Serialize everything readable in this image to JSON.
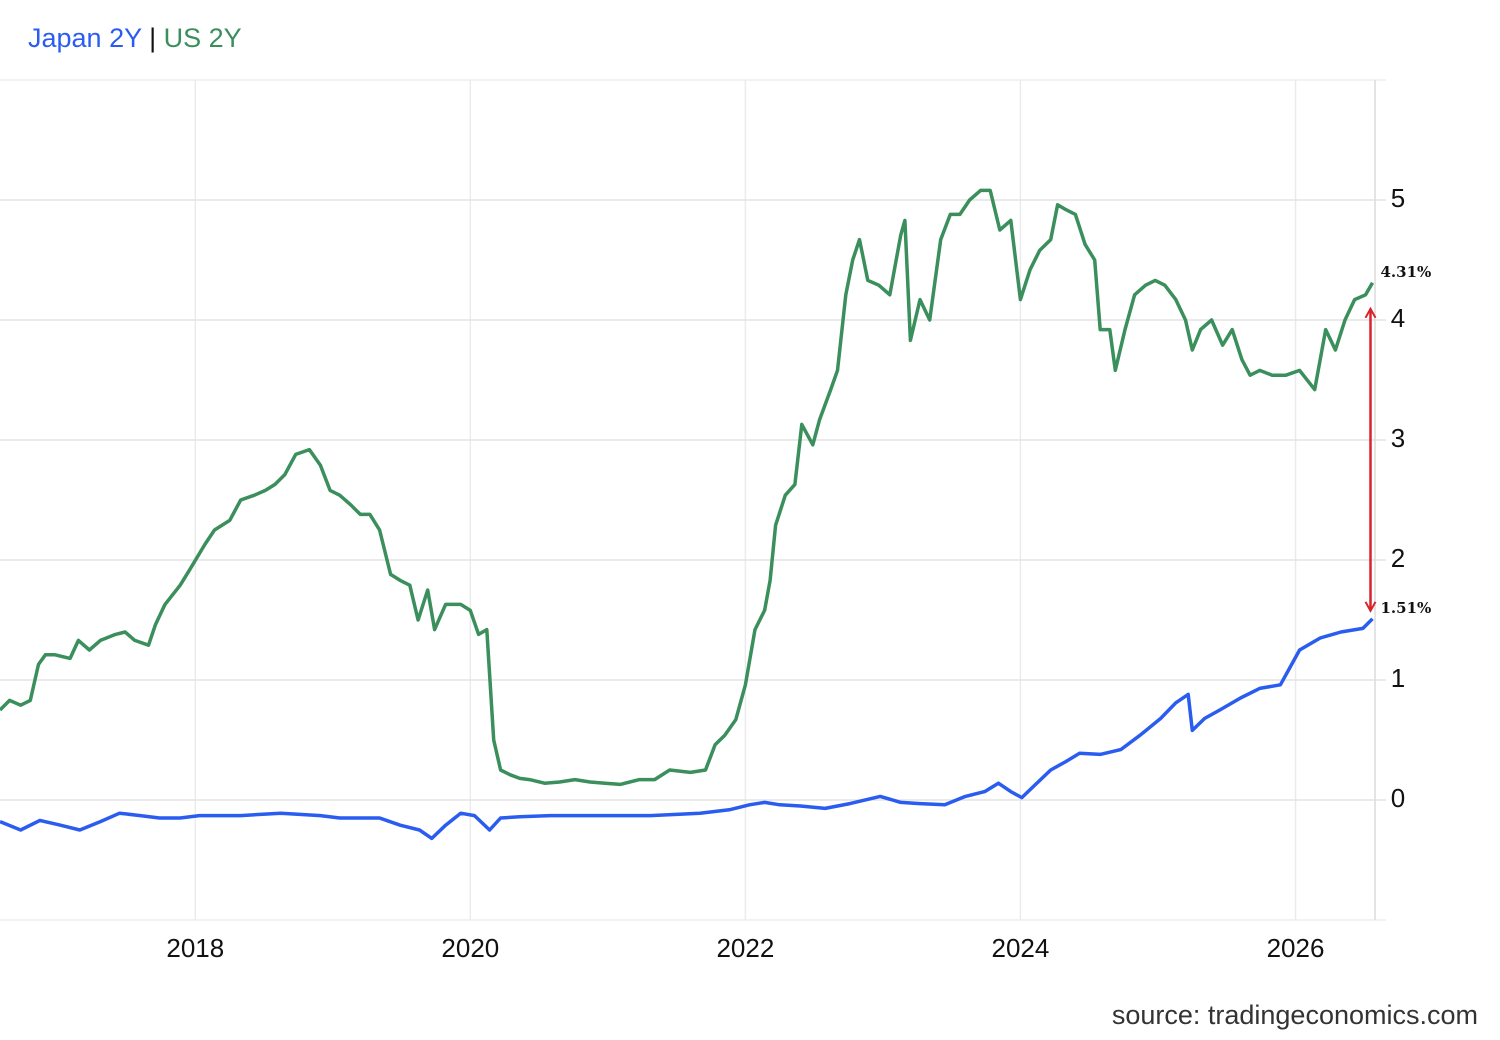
{
  "chart_data": {
    "type": "line",
    "legend_separator": "|",
    "source": "source: tradingeconomics.com",
    "xlim": [
      2016.58,
      2026.6
    ],
    "xticks": [
      2018,
      2020,
      2022,
      2024,
      2026
    ],
    "ylim": [
      -1,
      6
    ],
    "yticks": [
      0,
      1,
      2,
      3,
      4,
      5
    ],
    "grid": true,
    "y_axis_side": "right",
    "series": [
      {
        "name": "Japan 2Y",
        "color": "#2b5cf0",
        "end_label": "1.51%",
        "end_label_color": "#4b4bd0",
        "x": [
          2016.58,
          2016.73,
          2016.87,
          2017.02,
          2017.16,
          2017.31,
          2017.45,
          2017.6,
          2017.74,
          2017.89,
          2018.03,
          2018.33,
          2018.62,
          2018.76,
          2018.91,
          2019.05,
          2019.2,
          2019.34,
          2019.49,
          2019.63,
          2019.72,
          2019.82,
          2019.93,
          2020.03,
          2020.14,
          2020.22,
          2020.36,
          2020.58,
          2020.94,
          2021.31,
          2021.67,
          2021.89,
          2022.03,
          2022.14,
          2022.25,
          2022.4,
          2022.58,
          2022.76,
          2022.98,
          2023.13,
          2023.27,
          2023.45,
          2023.6,
          2023.74,
          2023.84,
          2023.93,
          2024.01,
          2024.11,
          2024.22,
          2024.33,
          2024.43,
          2024.58,
          2024.73,
          2024.87,
          2025.02,
          2025.13,
          2025.22,
          2025.25,
          2025.34,
          2025.45,
          2025.6,
          2025.74,
          2025.89,
          2026.03,
          2026.18,
          2026.33,
          2026.49,
          2026.56
        ],
        "values": [
          -0.18,
          -0.25,
          -0.17,
          -0.21,
          -0.25,
          -0.18,
          -0.11,
          -0.13,
          -0.15,
          -0.15,
          -0.13,
          -0.13,
          -0.11,
          -0.12,
          -0.13,
          -0.15,
          -0.15,
          -0.15,
          -0.21,
          -0.25,
          -0.32,
          -0.21,
          -0.11,
          -0.13,
          -0.25,
          -0.15,
          -0.14,
          -0.13,
          -0.13,
          -0.13,
          -0.11,
          -0.08,
          -0.04,
          -0.02,
          -0.04,
          -0.05,
          -0.07,
          -0.03,
          0.03,
          -0.02,
          -0.03,
          -0.04,
          0.03,
          0.07,
          0.14,
          0.07,
          0.02,
          0.13,
          0.25,
          0.32,
          0.39,
          0.38,
          0.42,
          0.54,
          0.68,
          0.81,
          0.88,
          0.58,
          0.68,
          0.75,
          0.85,
          0.93,
          0.96,
          1.25,
          1.35,
          1.4,
          1.43,
          1.51
        ]
      },
      {
        "name": "US 2Y",
        "color": "#3a8f5c",
        "end_label": "4.31%",
        "end_label_color": "#2fb350",
        "x": [
          2016.58,
          2016.65,
          2016.73,
          2016.8,
          2016.86,
          2016.91,
          2016.98,
          2017.09,
          2017.15,
          2017.23,
          2017.31,
          2017.42,
          2017.49,
          2017.56,
          2017.66,
          2017.71,
          2017.78,
          2017.89,
          2017.96,
          2018.07,
          2018.14,
          2018.25,
          2018.33,
          2018.43,
          2018.51,
          2018.58,
          2018.65,
          2018.73,
          2018.83,
          2018.91,
          2018.98,
          2019.05,
          2019.13,
          2019.2,
          2019.27,
          2019.34,
          2019.42,
          2019.49,
          2019.56,
          2019.62,
          2019.69,
          2019.74,
          2019.82,
          2019.93,
          2020.0,
          2020.06,
          2020.12,
          2020.17,
          2020.22,
          2020.29,
          2020.36,
          2020.43,
          2020.54,
          2020.65,
          2020.76,
          2020.87,
          2020.98,
          2021.09,
          2021.23,
          2021.34,
          2021.45,
          2021.6,
          2021.71,
          2021.78,
          2021.85,
          2021.93,
          2022.0,
          2022.07,
          2022.14,
          2022.18,
          2022.22,
          2022.29,
          2022.36,
          2022.41,
          2022.49,
          2022.54,
          2022.62,
          2022.67,
          2022.73,
          2022.78,
          2022.83,
          2022.89,
          2022.97,
          2023.05,
          2023.13,
          2023.16,
          2023.2,
          2023.27,
          2023.34,
          2023.42,
          2023.49,
          2023.56,
          2023.63,
          2023.71,
          2023.78,
          2023.85,
          2023.93,
          2024.0,
          2024.07,
          2024.14,
          2024.22,
          2024.27,
          2024.33,
          2024.4,
          2024.47,
          2024.54,
          2024.58,
          2024.65,
          2024.69,
          2024.76,
          2024.83,
          2024.91,
          2024.98,
          2025.05,
          2025.13,
          2025.2,
          2025.25,
          2025.31,
          2025.39,
          2025.47,
          2025.54,
          2025.61,
          2025.67,
          2025.74,
          2025.83,
          2025.93,
          2026.03,
          2026.14,
          2026.22,
          2026.29,
          2026.36,
          2026.43,
          2026.51,
          2026.56
        ],
        "values": [
          0.75,
          0.83,
          0.79,
          0.83,
          1.13,
          1.21,
          1.21,
          1.18,
          1.33,
          1.25,
          1.33,
          1.38,
          1.4,
          1.33,
          1.29,
          1.46,
          1.63,
          1.79,
          1.92,
          2.13,
          2.25,
          2.33,
          2.5,
          2.54,
          2.58,
          2.63,
          2.71,
          2.88,
          2.92,
          2.79,
          2.58,
          2.54,
          2.46,
          2.38,
          2.38,
          2.25,
          1.88,
          1.83,
          1.79,
          1.5,
          1.75,
          1.42,
          1.63,
          1.63,
          1.58,
          1.38,
          1.42,
          0.5,
          0.25,
          0.21,
          0.18,
          0.17,
          0.14,
          0.15,
          0.17,
          0.15,
          0.14,
          0.13,
          0.17,
          0.17,
          0.25,
          0.23,
          0.25,
          0.46,
          0.54,
          0.67,
          0.96,
          1.42,
          1.58,
          1.83,
          2.29,
          2.54,
          2.63,
          3.13,
          2.96,
          3.17,
          3.42,
          3.58,
          4.21,
          4.5,
          4.67,
          4.33,
          4.29,
          4.21,
          4.71,
          4.83,
          3.83,
          4.17,
          4.0,
          4.67,
          4.88,
          4.88,
          5.0,
          5.08,
          5.08,
          4.75,
          4.83,
          4.17,
          4.42,
          4.58,
          4.67,
          4.96,
          4.92,
          4.88,
          4.63,
          4.5,
          3.92,
          3.92,
          3.58,
          3.92,
          4.21,
          4.29,
          4.33,
          4.29,
          4.17,
          4.0,
          3.75,
          3.92,
          4.0,
          3.79,
          3.92,
          3.67,
          3.54,
          3.58,
          3.54,
          3.54,
          3.58,
          3.42,
          3.92,
          3.75,
          4.0,
          4.17,
          4.21,
          4.31
        ]
      }
    ]
  }
}
